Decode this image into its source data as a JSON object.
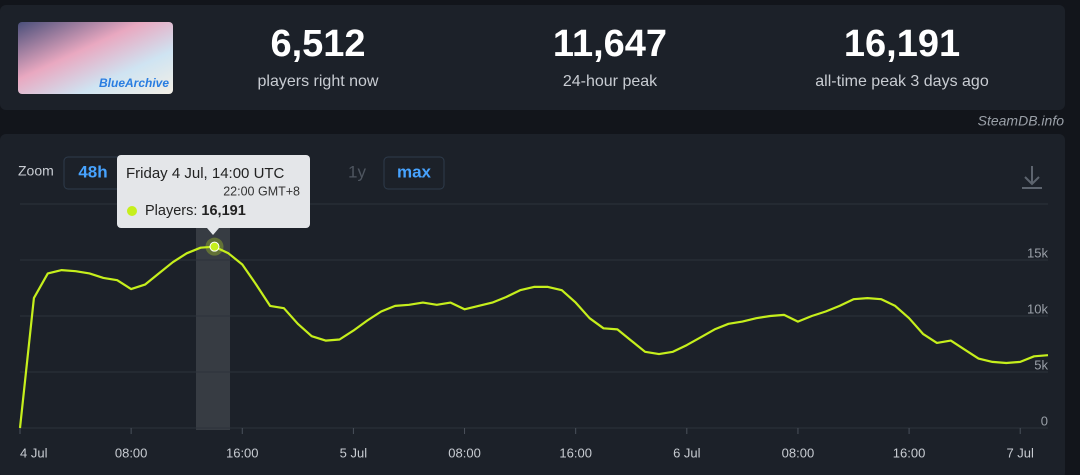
{
  "header": {
    "logo_text": "BlueArchive",
    "stats": [
      {
        "value": "6,512",
        "label": "players right now"
      },
      {
        "value": "11,647",
        "label": "24-hour peak"
      },
      {
        "value": "16,191",
        "label": "all-time peak 3 days ago"
      }
    ]
  },
  "source": "SteamDB.info",
  "zoom": {
    "label": "Zoom",
    "buttons": [
      "48h",
      "1y",
      "max"
    ]
  },
  "tooltip": {
    "title": "Friday 4 Jul, 14:00 UTC",
    "local_time": "22:00 GMT+8",
    "label": "Players:",
    "value": "16,191"
  },
  "chart_data": {
    "type": "line",
    "x": [
      0,
      1,
      2,
      3,
      4,
      5,
      6,
      7,
      8,
      9,
      10,
      11,
      12,
      13,
      14,
      15,
      16,
      17,
      18,
      19,
      20,
      21,
      22,
      23,
      24,
      25,
      26,
      27,
      28,
      29,
      30,
      31,
      32,
      33,
      34,
      35,
      36,
      37,
      38,
      39,
      40,
      41,
      42,
      43,
      44,
      45,
      46,
      47,
      48,
      49,
      50,
      51,
      52,
      53,
      54,
      55,
      56,
      57,
      58,
      59,
      60,
      61,
      62,
      63,
      64,
      65,
      66,
      67,
      68,
      69,
      70,
      71,
      72,
      73,
      74
    ],
    "series": [
      {
        "name": "Players",
        "color": "#c6ef1c",
        "values": [
          0,
          11600,
          13800,
          14100,
          14000,
          13800,
          13400,
          13200,
          12400,
          12800,
          13800,
          14800,
          15600,
          16100,
          16191,
          15600,
          14600,
          12800,
          10900,
          10700,
          9300,
          8200,
          7800,
          7900,
          8700,
          9600,
          10400,
          10900,
          11000,
          11200,
          11000,
          11200,
          10600,
          10900,
          11200,
          11700,
          12300,
          12600,
          12600,
          12300,
          11200,
          9800,
          8900,
          8800,
          7800,
          6800,
          6600,
          6800,
          7400,
          8100,
          8800,
          9300,
          9500,
          9800,
          10000,
          10100,
          9500,
          10000,
          10400,
          10900,
          11500,
          11600,
          11500,
          10900,
          9800,
          8400,
          7600,
          7800,
          7000,
          6200,
          5900,
          5800,
          5900,
          6400,
          6500
        ]
      }
    ],
    "xlim": [
      0,
      74
    ],
    "xticks": [
      {
        "value": 0,
        "label": "4 Jul"
      },
      {
        "value": 8,
        "label": "08:00"
      },
      {
        "value": 16,
        "label": "16:00"
      },
      {
        "value": 24,
        "label": "5 Jul"
      },
      {
        "value": 32,
        "label": "08:00"
      },
      {
        "value": 40,
        "label": "16:00"
      },
      {
        "value": 48,
        "label": "6 Jul"
      },
      {
        "value": 56,
        "label": "08:00"
      },
      {
        "value": 64,
        "label": "16:00"
      },
      {
        "value": 72,
        "label": "7 Jul"
      }
    ],
    "ylim": [
      0,
      20000
    ],
    "yticks": [
      0,
      {
        "value": 5000,
        "label": "5k"
      },
      {
        "value": 10000,
        "label": "10k"
      },
      {
        "value": 15000,
        "label": "15k"
      },
      20000
    ],
    "grid": true
  }
}
